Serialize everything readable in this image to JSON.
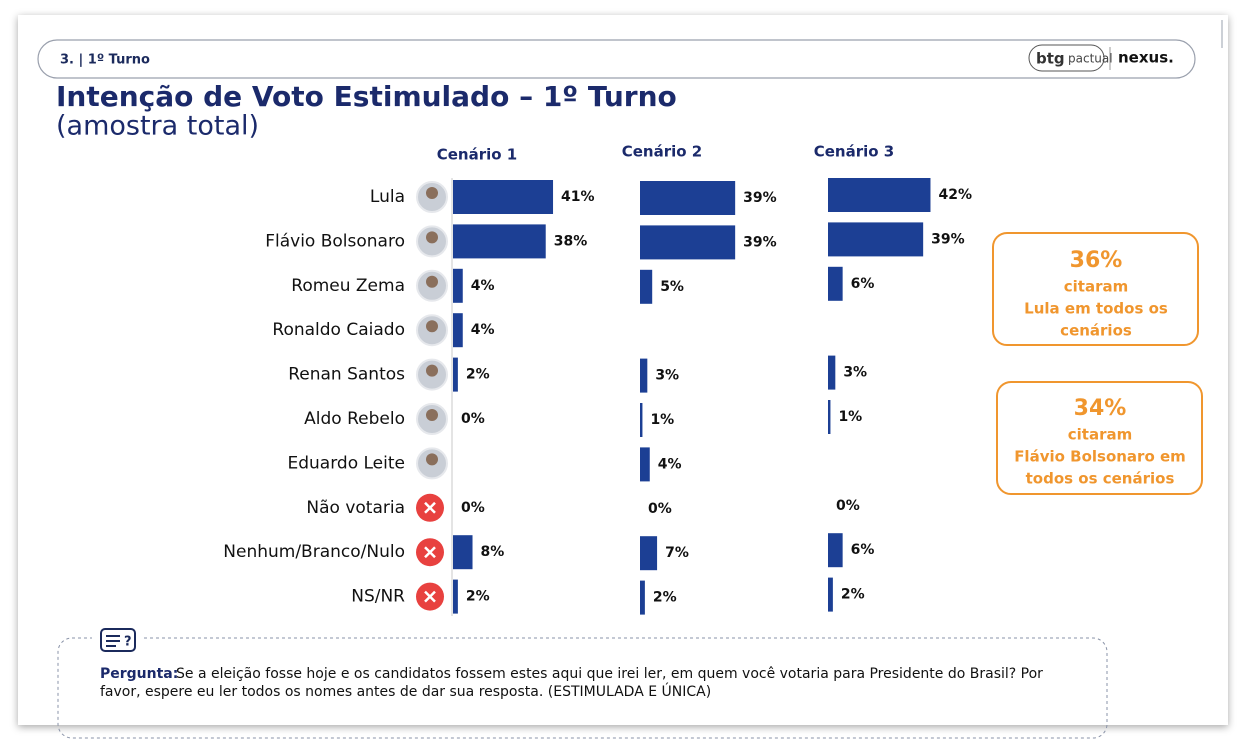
{
  "header": {
    "section": "3. | 1º Turno",
    "logo_brand": "btg",
    "logo_sub": "pactual",
    "logo_partner": "nexus."
  },
  "chart_data": {
    "type": "bar",
    "orientation": "horizontal",
    "title": "Intenção de Voto Estimulado – 1º Turno",
    "subtitle": "(amostra total)",
    "categories": [
      "Lula",
      "Flávio Bolsonaro",
      "Romeu Zema",
      "Ronaldo Caiado",
      "Renan Santos",
      "Aldo Rebelo",
      "Eduardo Leite",
      "Não votaria",
      "Nenhum/Branco/Nulo",
      "NS/NR"
    ],
    "series": [
      {
        "name": "Cenário 1",
        "color": "#1c3f94",
        "values": [
          41,
          38,
          4,
          4,
          2,
          0,
          null,
          0,
          8,
          2
        ],
        "value_labels": [
          "41%",
          "38%",
          "4%",
          "4%",
          "2%",
          "0%",
          null,
          "0%",
          "8%",
          "2%"
        ]
      },
      {
        "name": "Cenário 2",
        "color": "#1c3f94",
        "values": [
          39,
          39,
          5,
          null,
          3,
          1,
          4,
          0,
          7,
          2
        ],
        "value_labels": [
          "39%",
          "39%",
          "5%",
          null,
          "3%",
          "1%",
          "4%",
          "0%",
          "7%",
          "2%"
        ]
      },
      {
        "name": "Cenário 3",
        "color": "#1c3f94",
        "values": [
          42,
          39,
          6,
          null,
          3,
          1,
          null,
          0,
          6,
          2
        ],
        "value_labels": [
          "42%",
          "39%",
          "6%",
          null,
          "3%",
          "1%",
          null,
          "0%",
          "6%",
          "2%"
        ]
      }
    ]
  },
  "callouts": [
    {
      "lines": [
        "36%",
        "citaram",
        "Lula em todos os",
        "cenários"
      ]
    },
    {
      "lines": [
        "34%",
        "citaram",
        "Flávio Bolsonaro em",
        "todos os cenários"
      ]
    }
  ],
  "question": {
    "label": "Pergunta:",
    "lines": [
      "Se a eleição fosse hoje e os candidatos fossem estes aqui que irei ler, em quem você votaria para Presidente do Brasil? Por",
      "favor, espere eu ler todos os nomes antes de dar sua resposta. (ESTIMULADA E ÚNICA)"
    ]
  }
}
